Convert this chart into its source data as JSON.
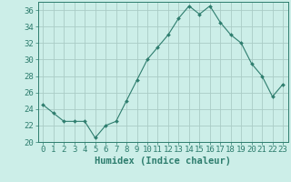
{
  "x": [
    0,
    1,
    2,
    3,
    4,
    5,
    6,
    7,
    8,
    9,
    10,
    11,
    12,
    13,
    14,
    15,
    16,
    17,
    18,
    19,
    20,
    21,
    22,
    23
  ],
  "y": [
    24.5,
    23.5,
    22.5,
    22.5,
    22.5,
    20.5,
    22.0,
    22.5,
    25.0,
    27.5,
    30.0,
    31.5,
    33.0,
    35.0,
    36.5,
    35.5,
    36.5,
    34.5,
    33.0,
    32.0,
    29.5,
    28.0,
    25.5,
    27.0
  ],
  "line_color": "#2e7d6e",
  "marker": "D",
  "marker_size": 2.0,
  "bg_color": "#cceee8",
  "grid_color": "#aaccc6",
  "xlabel": "Humidex (Indice chaleur)",
  "ylim": [
    20,
    37
  ],
  "xlim": [
    -0.5,
    23.5
  ],
  "yticks": [
    20,
    22,
    24,
    26,
    28,
    30,
    32,
    34,
    36
  ],
  "xticks": [
    0,
    1,
    2,
    3,
    4,
    5,
    6,
    7,
    8,
    9,
    10,
    11,
    12,
    13,
    14,
    15,
    16,
    17,
    18,
    19,
    20,
    21,
    22,
    23
  ],
  "tick_fontsize": 6.5,
  "xlabel_fontsize": 7.5
}
